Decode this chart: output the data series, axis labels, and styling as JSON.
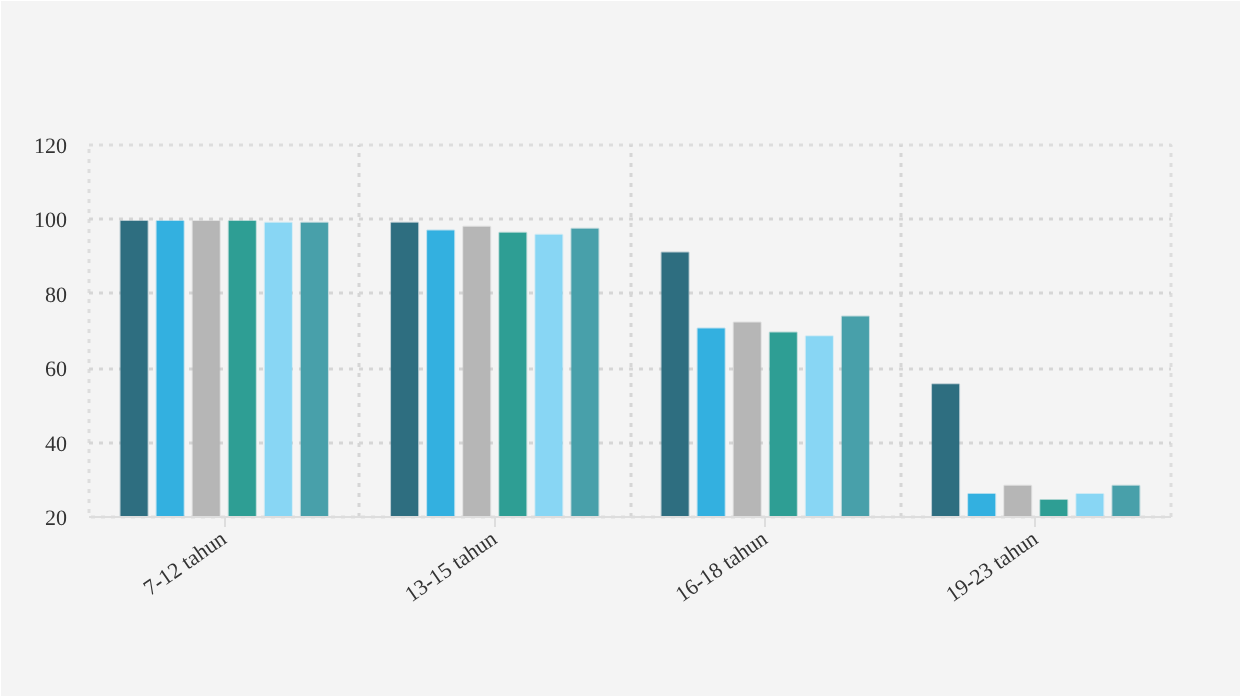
{
  "chart_data": {
    "type": "bar",
    "categories": [
      "7-12 tahun",
      "13-15 tahun",
      "16-18 tahun",
      "19-23 tahun"
    ],
    "series": [
      {
        "color": "#2e6e80",
        "values": [
          99.6,
          99.1,
          91.1,
          55.7
        ]
      },
      {
        "color": "#33b0e0",
        "values": [
          99.6,
          97.0,
          70.7,
          26.2
        ]
      },
      {
        "color": "#b6b6b6",
        "values": [
          99.6,
          98.0,
          72.3,
          28.4
        ]
      },
      {
        "color": "#2e9e94",
        "values": [
          99.6,
          96.4,
          69.6,
          24.6
        ]
      },
      {
        "color": "#88d6f4",
        "values": [
          99.1,
          95.9,
          68.6,
          26.2
        ]
      },
      {
        "color": "#48a0aa",
        "values": [
          99.1,
          97.5,
          73.9,
          28.4
        ]
      }
    ],
    "ylim": [
      20,
      120
    ],
    "yticks": [
      20,
      40,
      60,
      80,
      100,
      120
    ],
    "grid": true
  }
}
